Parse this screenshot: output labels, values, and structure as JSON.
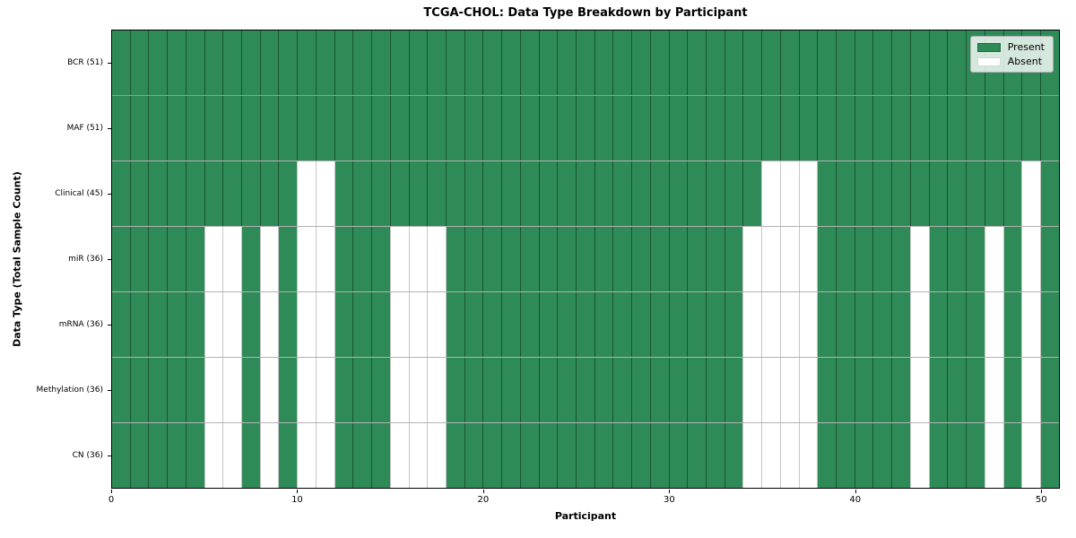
{
  "chart_data": {
    "type": "heatmap",
    "title": "TCGA-CHOL: Data Type Breakdown by Participant",
    "xlabel": "Participant",
    "ylabel": "Data Type (Total Sample Count)",
    "n_participants": 51,
    "xlim": [
      0,
      51
    ],
    "x_ticks": [
      0,
      10,
      20,
      30,
      40,
      50
    ],
    "grid": "cell-borders",
    "legend_position": "upper-right",
    "legend": [
      {
        "label": "Present",
        "color": "#2e8b57"
      },
      {
        "label": "Absent",
        "color": "#ffffff"
      }
    ],
    "colors": {
      "present": "#2e8b57",
      "absent": "#ffffff",
      "cell_border_on_present": "rgba(0,0,0,0.40)",
      "cell_border_on_absent": "#c6c6c6",
      "axis_spine": "#000000"
    },
    "rows": [
      {
        "label": "BCR (51)",
        "data_type": "BCR",
        "present_count": 51,
        "absent_participants": []
      },
      {
        "label": "MAF (51)",
        "data_type": "MAF",
        "present_count": 51,
        "absent_participants": []
      },
      {
        "label": "Clinical (45)",
        "data_type": "Clinical",
        "present_count": 45,
        "absent_participants": [
          10,
          11,
          35,
          36,
          37,
          49
        ]
      },
      {
        "label": "miR (36)",
        "data_type": "miR",
        "present_count": 36,
        "absent_participants": [
          5,
          6,
          8,
          10,
          11,
          15,
          16,
          17,
          34,
          35,
          36,
          37,
          43,
          47,
          49
        ]
      },
      {
        "label": "mRNA (36)",
        "data_type": "mRNA",
        "present_count": 36,
        "absent_participants": [
          5,
          6,
          8,
          10,
          11,
          15,
          16,
          17,
          34,
          35,
          36,
          37,
          43,
          47,
          49
        ]
      },
      {
        "label": "Methylation (36)",
        "data_type": "Methylation",
        "present_count": 36,
        "absent_participants": [
          5,
          6,
          8,
          10,
          11,
          15,
          16,
          17,
          34,
          35,
          36,
          37,
          43,
          47,
          49
        ]
      },
      {
        "label": "CN (36)",
        "data_type": "CN",
        "present_count": 36,
        "absent_participants": [
          5,
          6,
          8,
          10,
          11,
          15,
          16,
          17,
          34,
          35,
          36,
          37,
          43,
          47,
          49
        ]
      }
    ]
  }
}
